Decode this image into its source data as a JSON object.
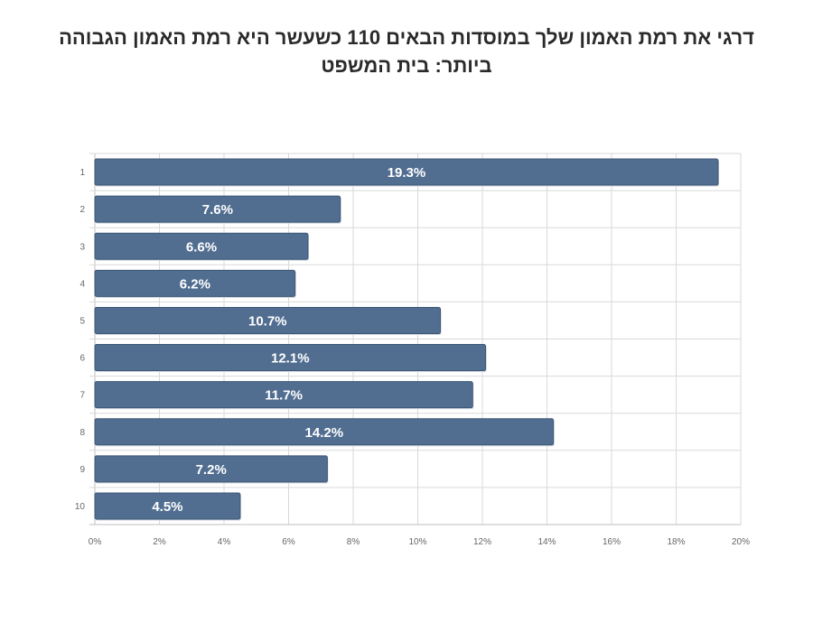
{
  "chart_data": {
    "type": "bar",
    "orientation": "horizontal",
    "title_lines": [
      "דרגי את רמת האמון שלך במוסדות הבאים 110 כשעשר היא רמת האמון הגבוהה",
      "ביותר: בית המשפט"
    ],
    "categories": [
      "1",
      "2",
      "3",
      "4",
      "5",
      "6",
      "7",
      "8",
      "9",
      "10"
    ],
    "values": [
      19.3,
      7.6,
      6.6,
      6.2,
      10.7,
      12.1,
      11.7,
      14.2,
      7.2,
      4.5
    ],
    "value_labels": [
      "19.3%",
      "7.6%",
      "6.6%",
      "6.2%",
      "10.7%",
      "12.1%",
      "11.7%",
      "14.2%",
      "7.2%",
      "4.5%"
    ],
    "x_ticks": [
      "0%",
      "2%",
      "4%",
      "6%",
      "8%",
      "10%",
      "12%",
      "14%",
      "16%",
      "18%",
      "20%"
    ],
    "xlim": [
      0,
      20
    ],
    "xlabel": "",
    "ylabel": "",
    "grid": true,
    "legend": "none",
    "colors": {
      "bar_fill": "#516e91",
      "bar_edge": "#3f5876",
      "bar_label": "#ffffff"
    }
  }
}
